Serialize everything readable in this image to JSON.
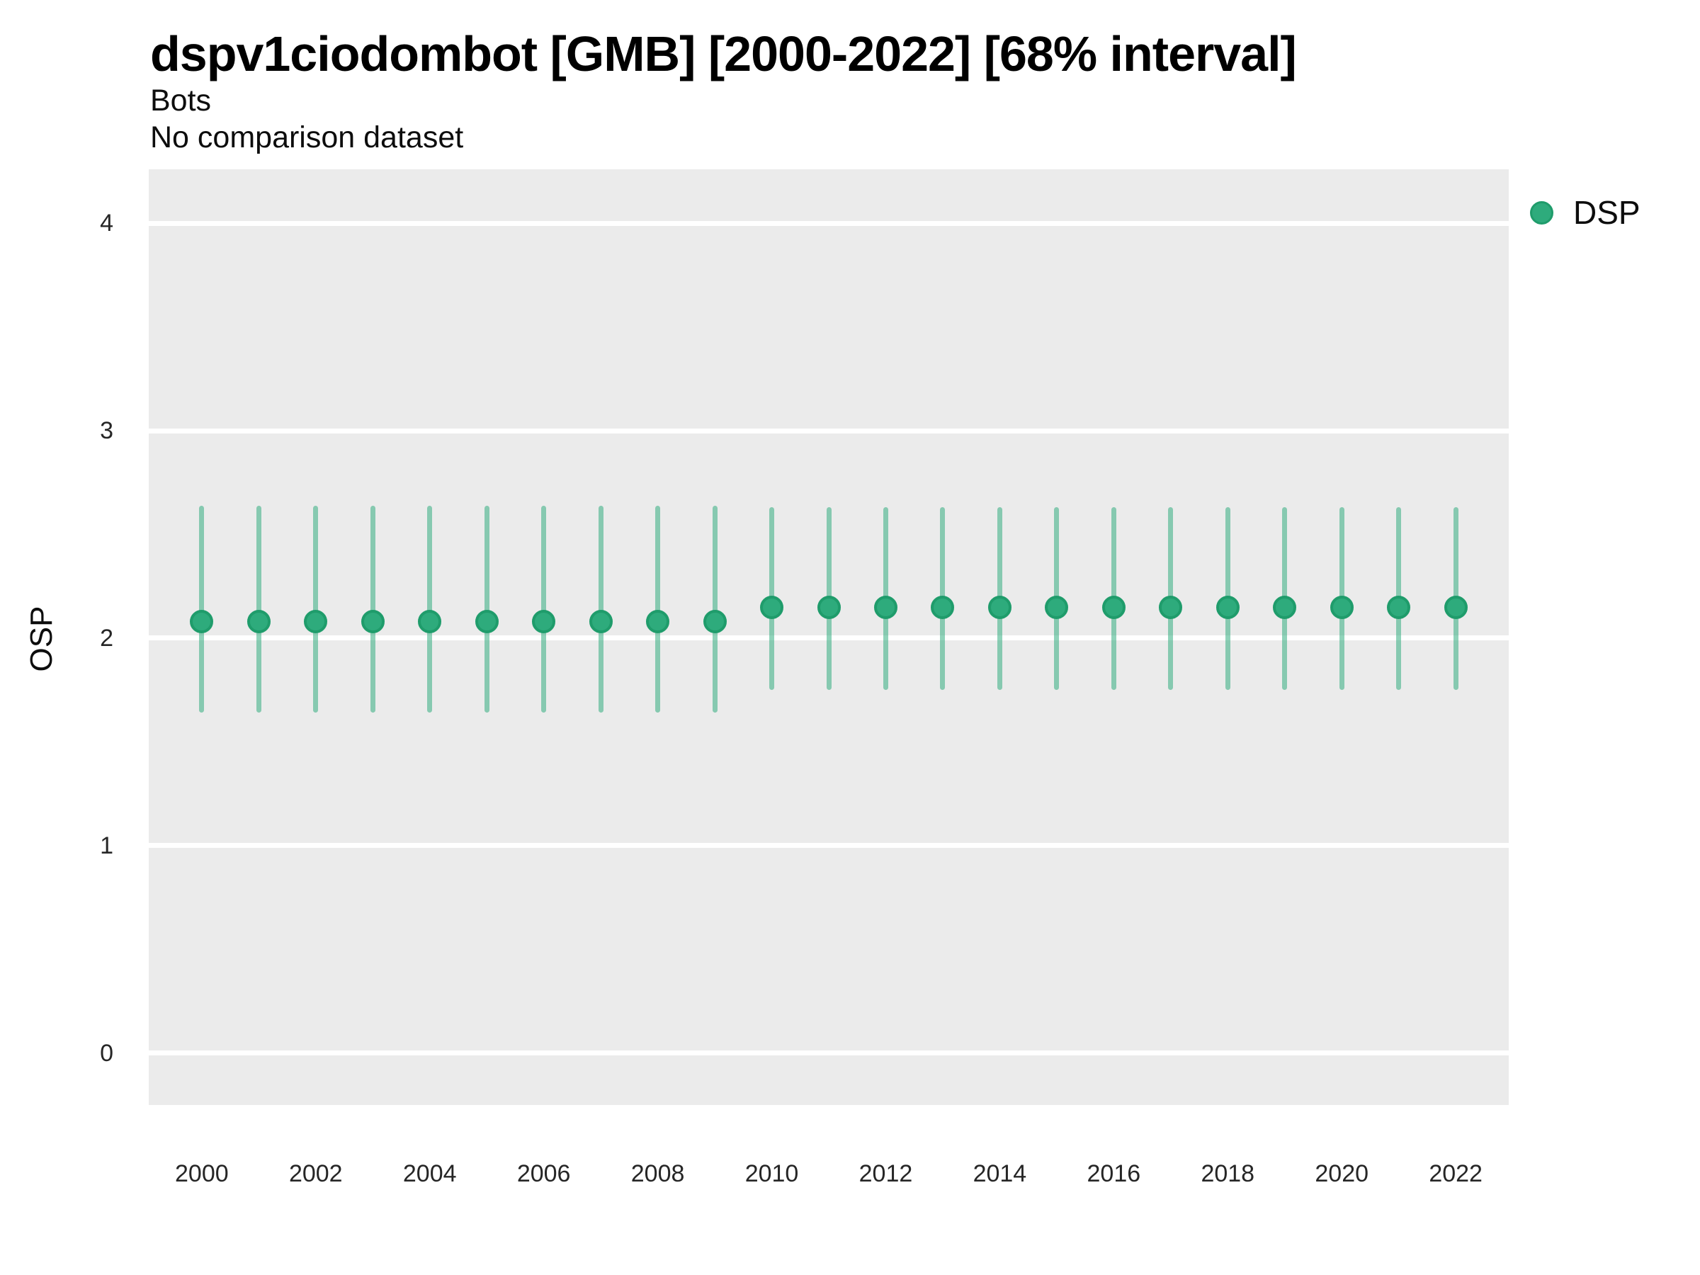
{
  "header": {
    "title": "dspv1ciodombot [GMB] [2000-2022] [68% interval]",
    "subtitle": "Bots",
    "note": "No comparison dataset"
  },
  "legend": {
    "position": "right-top",
    "items": [
      {
        "label": "DSP",
        "color": "#2eab7c",
        "border_color": "#1f9c6b",
        "marker": "circle"
      }
    ]
  },
  "colors": {
    "panel_background": "#ebebeb",
    "gridline": "#ffffff",
    "point_fill": "#2eab7c",
    "point_border": "#1f9c6b",
    "errorbar": "#2bab7b",
    "text": "#0d0d0d",
    "tick_text": "#262626"
  },
  "chart_data": {
    "type": "scatter",
    "subtype": "point-with-interval",
    "title": "dspv1ciodombot [GMB] [2000-2022] [68% interval]",
    "subtitle": "Bots",
    "note": "No comparison dataset",
    "xlabel": "",
    "ylabel": "OSP",
    "interval_level": "68%",
    "grid": "major-horizontal-white-on-gray",
    "legend_position": "right-top",
    "x": [
      2000,
      2001,
      2002,
      2003,
      2004,
      2005,
      2006,
      2007,
      2008,
      2009,
      2010,
      2011,
      2012,
      2013,
      2014,
      2015,
      2016,
      2017,
      2018,
      2019,
      2020,
      2021,
      2022
    ],
    "series": [
      {
        "name": "DSP",
        "mid": [
          2.08,
          2.08,
          2.08,
          2.08,
          2.08,
          2.08,
          2.08,
          2.08,
          2.08,
          2.08,
          2.15,
          2.15,
          2.15,
          2.15,
          2.15,
          2.15,
          2.15,
          2.15,
          2.15,
          2.15,
          2.15,
          2.15,
          2.15
        ],
        "lo": [
          1.64,
          1.64,
          1.64,
          1.64,
          1.64,
          1.64,
          1.64,
          1.64,
          1.64,
          1.64,
          1.75,
          1.75,
          1.75,
          1.75,
          1.75,
          1.75,
          1.75,
          1.75,
          1.75,
          1.75,
          1.75,
          1.75,
          1.75
        ],
        "hi": [
          2.64,
          2.64,
          2.64,
          2.64,
          2.64,
          2.64,
          2.64,
          2.64,
          2.64,
          2.64,
          2.63,
          2.63,
          2.63,
          2.63,
          2.63,
          2.63,
          2.63,
          2.63,
          2.63,
          2.63,
          2.63,
          2.63,
          2.63
        ]
      }
    ],
    "xticks": [
      2000,
      2002,
      2004,
      2006,
      2008,
      2010,
      2012,
      2014,
      2016,
      2018,
      2020,
      2022
    ],
    "yticks": [
      0,
      1,
      2,
      3,
      4
    ],
    "ylim": [
      -0.25,
      4.26
    ],
    "xlim": [
      1999.07,
      2022.93
    ],
    "errorbar_opacity": 0.52
  }
}
